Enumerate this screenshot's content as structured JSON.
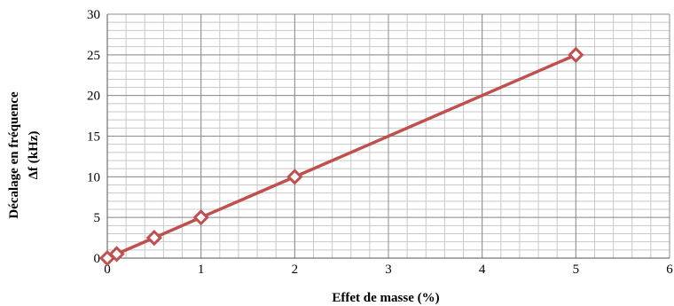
{
  "chart_data": {
    "type": "line",
    "title": "",
    "xlabel": "Effet de masse (%)",
    "ylabel_lines": [
      "Décalage en  fréquence",
      "Δf (kHz)"
    ],
    "xlim": [
      0,
      6
    ],
    "ylim": [
      0,
      30
    ],
    "xticks": [
      0,
      1,
      2,
      3,
      4,
      5,
      6
    ],
    "yticks": [
      0,
      5,
      10,
      15,
      20,
      25,
      30
    ],
    "grid": true,
    "legend": "none",
    "series": [
      {
        "color": "#c0504d",
        "marker": "diamond-open",
        "x": [
          0,
          0.1,
          0.5,
          1,
          2,
          5
        ],
        "y": [
          0,
          0.5,
          2.5,
          5,
          10,
          25
        ]
      }
    ]
  }
}
